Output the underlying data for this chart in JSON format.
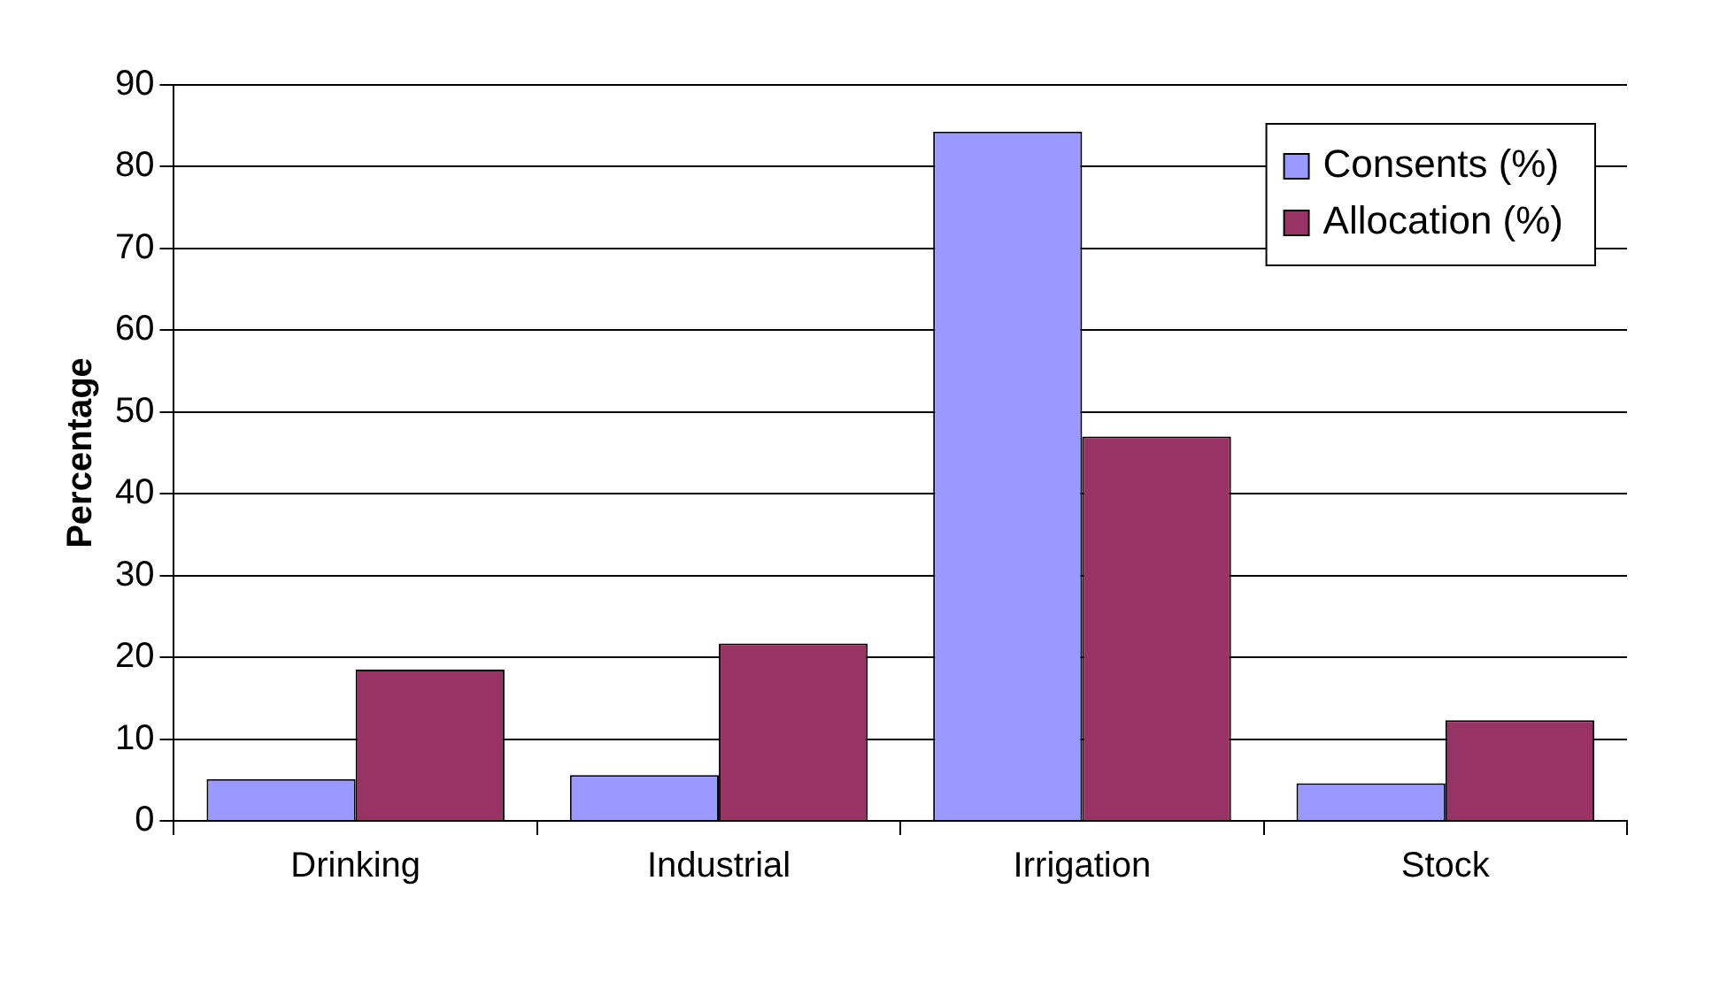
{
  "chart_data": {
    "type": "bar",
    "ylabel": "Percentage",
    "categories": [
      "Drinking",
      "Industrial",
      "Irrigation",
      "Stock"
    ],
    "series": [
      {
        "name": "Consents (%)",
        "color": "#9999ff",
        "values": [
          5.1,
          5.6,
          84.3,
          4.6
        ]
      },
      {
        "name": "Allocation (%)",
        "color": "#993366",
        "values": [
          18.5,
          21.7,
          47.0,
          12.3
        ]
      }
    ],
    "ylim": [
      0,
      90
    ],
    "yticks": [
      0,
      10,
      20,
      30,
      40,
      50,
      60,
      70,
      80,
      90
    ],
    "grid": "y",
    "legend": "top right"
  }
}
